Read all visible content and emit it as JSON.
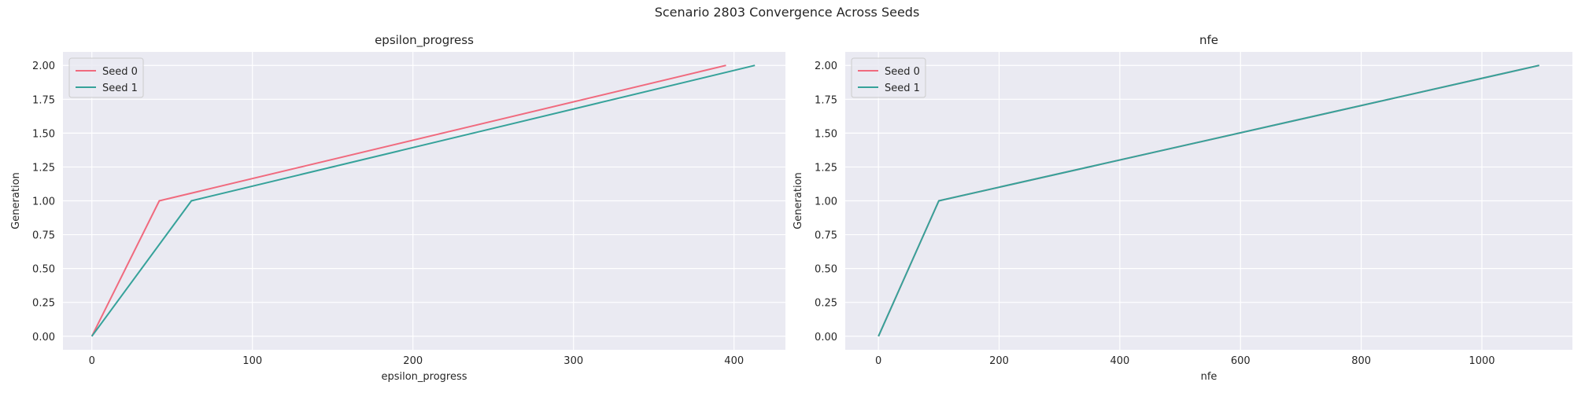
{
  "figure": {
    "suptitle": "Scenario 2803 Convergence Across Seeds",
    "panel_bg": "#eaeaf2",
    "grid_color": "#ffffff"
  },
  "chart_data": [
    {
      "type": "line",
      "title": "epsilon_progress",
      "xlabel": "epsilon_progress",
      "ylabel": "Generation",
      "xlim": [
        -18,
        432
      ],
      "ylim": [
        -0.1,
        2.1
      ],
      "x_ticks": [
        0,
        100,
        200,
        300,
        400
      ],
      "y_ticks": [
        "0.00",
        "0.25",
        "0.50",
        "0.75",
        "1.00",
        "1.25",
        "1.50",
        "1.75",
        "2.00"
      ],
      "grid": true,
      "legend_position": "top-left",
      "series": [
        {
          "name": "Seed 0",
          "color": "#f06a7e",
          "x": [
            0,
            42,
            395
          ],
          "y": [
            0,
            1,
            2
          ]
        },
        {
          "name": "Seed 1",
          "color": "#36a29a",
          "x": [
            0,
            62,
            413
          ],
          "y": [
            0,
            1,
            2
          ]
        }
      ]
    },
    {
      "type": "line",
      "title": "nfe",
      "xlabel": "nfe",
      "ylabel": "Generation",
      "xlim": [
        -55,
        1150
      ],
      "ylim": [
        -0.1,
        2.1
      ],
      "x_ticks": [
        0,
        200,
        400,
        600,
        800,
        1000
      ],
      "y_ticks": [
        "0.00",
        "0.25",
        "0.50",
        "0.75",
        "1.00",
        "1.25",
        "1.50",
        "1.75",
        "2.00"
      ],
      "grid": true,
      "legend_position": "top-left",
      "series": [
        {
          "name": "Seed 0",
          "color": "#f06a7e",
          "x": [
            0,
            100,
            1095
          ],
          "y": [
            0,
            1,
            2
          ]
        },
        {
          "name": "Seed 1",
          "color": "#36a29a",
          "x": [
            0,
            100,
            1095
          ],
          "y": [
            0,
            1,
            2
          ]
        }
      ]
    }
  ]
}
